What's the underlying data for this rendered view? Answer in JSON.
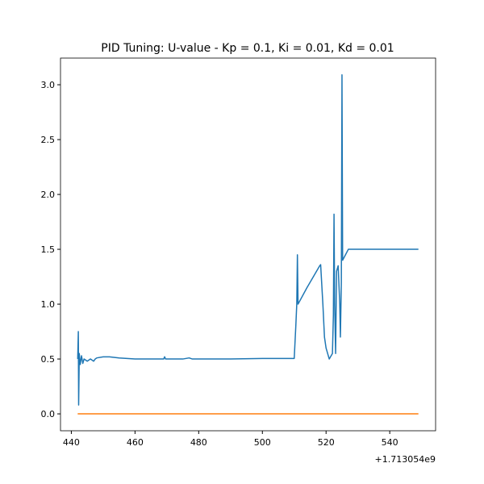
{
  "chart_data": {
    "type": "line",
    "title": "PID Tuning: U-value - Kp = 0.1, Ki = 0.01, Kd = 0.01",
    "x_offset_label": "+1.713054e9",
    "xlim": [
      436.6,
      554.4
    ],
    "xticks": [
      440,
      460,
      480,
      500,
      520,
      540
    ],
    "ylim": [
      -0.154,
      3.243
    ],
    "yticks": [
      {
        "value": 0,
        "label": "0.0"
      },
      0.5,
      {
        "value": 1,
        "label": "1.0"
      },
      1.5,
      {
        "value": 2,
        "label": "2.0"
      },
      2.5,
      {
        "value": 3,
        "label": "3.0"
      }
    ],
    "series": [
      {
        "color": "#1f77b4",
        "x": [
          442.0,
          442.2,
          442.3,
          442.5,
          442.8,
          443.2,
          443.6,
          444,
          445,
          446,
          447,
          447.5,
          448,
          450,
          452,
          455,
          460,
          465,
          469,
          469.3,
          469.6,
          475,
          477,
          478,
          490,
          500,
          505,
          510,
          510.5,
          510.8,
          511,
          511.2,
          514,
          518,
          518.3,
          519,
          519.5,
          520,
          521,
          522,
          522.3,
          522.5,
          522.7,
          523,
          523.3,
          523.8,
          524.3,
          524.5,
          524.8,
          525,
          525.2,
          527,
          549
        ],
        "values": [
          0.5,
          0.75,
          0.08,
          0.55,
          0.45,
          0.53,
          0.46,
          0.5,
          0.48,
          0.5,
          0.48,
          0.5,
          0.51,
          0.52,
          0.52,
          0.51,
          0.5,
          0.5,
          0.5,
          0.52,
          0.5,
          0.5,
          0.51,
          0.5,
          0.5,
          0.505,
          0.505,
          0.505,
          0.8,
          1.0,
          1.45,
          1.0,
          1.15,
          1.35,
          1.36,
          1.0,
          0.7,
          0.6,
          0.5,
          0.55,
          0.9,
          1.82,
          1.0,
          0.55,
          1.3,
          1.35,
          1.0,
          0.7,
          1.2,
          3.09,
          1.4,
          1.5,
          1.5
        ]
      },
      {
        "color": "#ff7f0e",
        "x": [
          442,
          549
        ],
        "values": [
          0,
          0
        ]
      }
    ]
  }
}
